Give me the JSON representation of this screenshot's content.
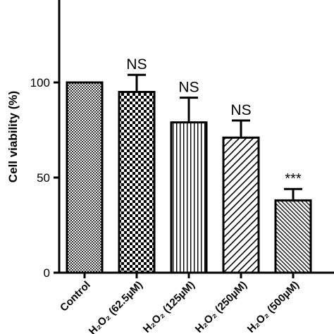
{
  "chart_data": {
    "type": "bar",
    "ylabel": "Cell viability (%)",
    "xlabel": "",
    "ylim": [
      0,
      140
    ],
    "yticks": [
      0,
      50,
      100
    ],
    "grid": false,
    "categories": [
      "Control",
      "H₂O₂ (62.5µM)",
      "H₂O₂ (125µM)",
      "H₂O₂ (250µM)",
      "H₂O₂ (500µM)"
    ],
    "values": [
      100,
      95,
      79,
      71,
      38
    ],
    "errors": [
      0,
      9,
      13,
      9,
      6
    ],
    "annotations": [
      "",
      "NS",
      "NS",
      "NS",
      "***"
    ],
    "patterns": [
      "fine-grid",
      "checker",
      "vertical-lines",
      "diagonal-lines",
      "fine-diagonal-lines"
    ]
  }
}
